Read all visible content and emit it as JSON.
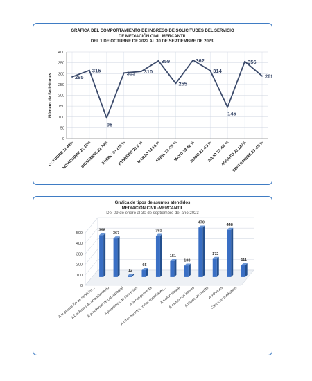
{
  "chart1": {
    "type": "line",
    "title_lines": [
      "GRÁFICA DEL COMPORTAMIENTO DE  INGRESO DE SOLICITUDES DEL SERVICIO",
      "DE MEDIACIÓN CIVIL  MERCANTIL",
      "DEL  1 DE OCTUBRE DE 2022   AL  30  DE SEPTIEMBRE  DE 2023."
    ],
    "ylabel": "Número de Solicitudes",
    "ylim": [
      0,
      400
    ],
    "yticks": [
      "0",
      "50",
      "100",
      "150",
      "200",
      "250",
      "300",
      "350",
      "400"
    ],
    "grid": true,
    "categories": [
      "OCTUBRE  22   40%",
      "NOVIEMBRE  22   10%",
      "DICIEMBRE  22   70%",
      "ENERO 23   219 %",
      "FEBRERO   23  2 %",
      "MARZO  23   16 %",
      "ABRIL  23  -29 %",
      "MAYO  23  42 %",
      "JUNIO  23  -13 %",
      "JULIO 23  -54 %",
      "AGOSTO   23  145%",
      "SEPTIEMBRE  23  -19 %"
    ],
    "values": [
      285,
      315,
      95,
      303,
      310,
      359,
      255,
      362,
      314,
      145,
      356,
      289
    ],
    "labels": [
      "285",
      "315",
      "95",
      "303",
      "310",
      "359",
      "255",
      "362",
      "314",
      "145",
      "356",
      "289"
    ],
    "line_color": "#3b4a6b"
  },
  "chart2": {
    "type": "bar",
    "title_lines": [
      "Gráfica de tipos de asuntos atendidos",
      "MEDIACIÓN CIVIL-MERCANTIL",
      "Del 09 de enero al 30 de septiembre del año 2023"
    ],
    "ylim": [
      0,
      500
    ],
    "yticks": [
      "0",
      "100",
      "200",
      "300",
      "400",
      "500"
    ],
    "grid": true,
    "categories": [
      "A la prestación de servicios...",
      "A Conflictos de arrendamiento",
      "A problemas de copropiedad",
      "A problemas de convenios",
      "A la compraventa",
      "A otros asuntos como: sociedades...",
      "A mutuo simple",
      "A mutuo con interés",
      "A títulos de crédito",
      "A informes",
      "Casos no mediables"
    ],
    "values": [
      398,
      367,
      12,
      65,
      391,
      151,
      108,
      470,
      172,
      448,
      111
    ],
    "labels": [
      "398",
      "367",
      "12",
      "65",
      "391",
      "151",
      "108",
      "470",
      "172",
      "448",
      "111"
    ],
    "bar_color": "#3a6fc4"
  }
}
